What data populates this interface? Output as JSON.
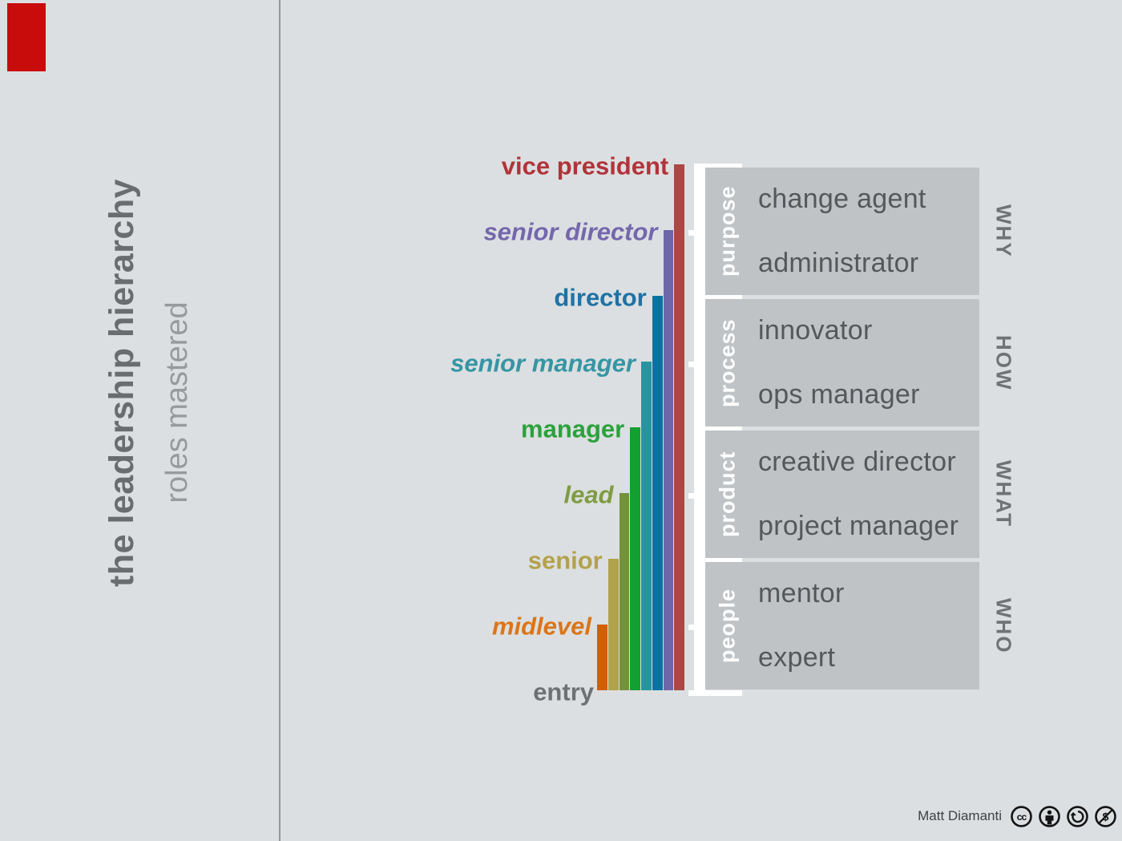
{
  "chart_data": {
    "type": "bar",
    "title": "the leadership hierarchy",
    "subtitle": "roles mastered",
    "orientation": "vertical-staircase",
    "baseline_level": "entry",
    "categories": [
      "entry",
      "midlevel",
      "senior",
      "lead",
      "manager",
      "senior manager",
      "director",
      "senior director",
      "vice president"
    ],
    "values": [
      0,
      1,
      2,
      3,
      4,
      5,
      6,
      7,
      8
    ],
    "levels": [
      {
        "label": "vice president",
        "value": 8,
        "italic": false,
        "label_color": "#b13339",
        "bar_color": "#ab4744"
      },
      {
        "label": "senior director",
        "value": 7,
        "italic": true,
        "label_color": "#7467ac",
        "bar_color": "#6d67a8"
      },
      {
        "label": "director",
        "value": 6,
        "italic": false,
        "label_color": "#2072a4",
        "bar_color": "#0a72a1"
      },
      {
        "label": "senior manager",
        "value": 5,
        "italic": true,
        "label_color": "#3695a4",
        "bar_color": "#2a93a0"
      },
      {
        "label": "manager",
        "value": 4,
        "italic": false,
        "label_color": "#2aa23c",
        "bar_color": "#12a030"
      },
      {
        "label": "lead",
        "value": 3,
        "italic": true,
        "label_color": "#7f9c42",
        "bar_color": "#74923a"
      },
      {
        "label": "senior",
        "value": 2,
        "italic": false,
        "label_color": "#b3a24b",
        "bar_color": "#b1a24c"
      },
      {
        "label": "midlevel",
        "value": 1,
        "italic": true,
        "label_color": "#dc7517",
        "bar_color": "#d25f04"
      },
      {
        "label": "entry",
        "value": 0,
        "italic": false,
        "label_color": "#6e7174",
        "bar_color": null
      }
    ],
    "legend": false,
    "grid": false
  },
  "groups": [
    {
      "name": "purpose",
      "roles": [
        "change agent",
        "administrator"
      ],
      "dimension": "WHY"
    },
    {
      "name": "process",
      "roles": [
        "innovator",
        "ops manager"
      ],
      "dimension": "HOW"
    },
    {
      "name": "product",
      "roles": [
        "creative director",
        "project manager"
      ],
      "dimension": "WHAT"
    },
    {
      "name": "people",
      "roles": [
        "mentor",
        "expert"
      ],
      "dimension": "WHO"
    }
  ],
  "attribution": {
    "author": "Matt Diamanti",
    "license_icons": [
      "cc-icon",
      "cc-by-icon",
      "cc-sa-icon",
      "cc-nc-icon"
    ]
  },
  "colors": {
    "background": "#dcdfe1",
    "group_box": "#bfc3c6",
    "divider": "#94979a",
    "accent_block": "#c80b0b",
    "title_text": "#696d70",
    "subtitle_text": "#979a9d",
    "role_text": "#54585b",
    "category_text": "#ffffff",
    "dimension_text": "#6f7376",
    "bracket": "#ffffff",
    "attribution_text": "#3e4245",
    "icon": "#141414"
  }
}
